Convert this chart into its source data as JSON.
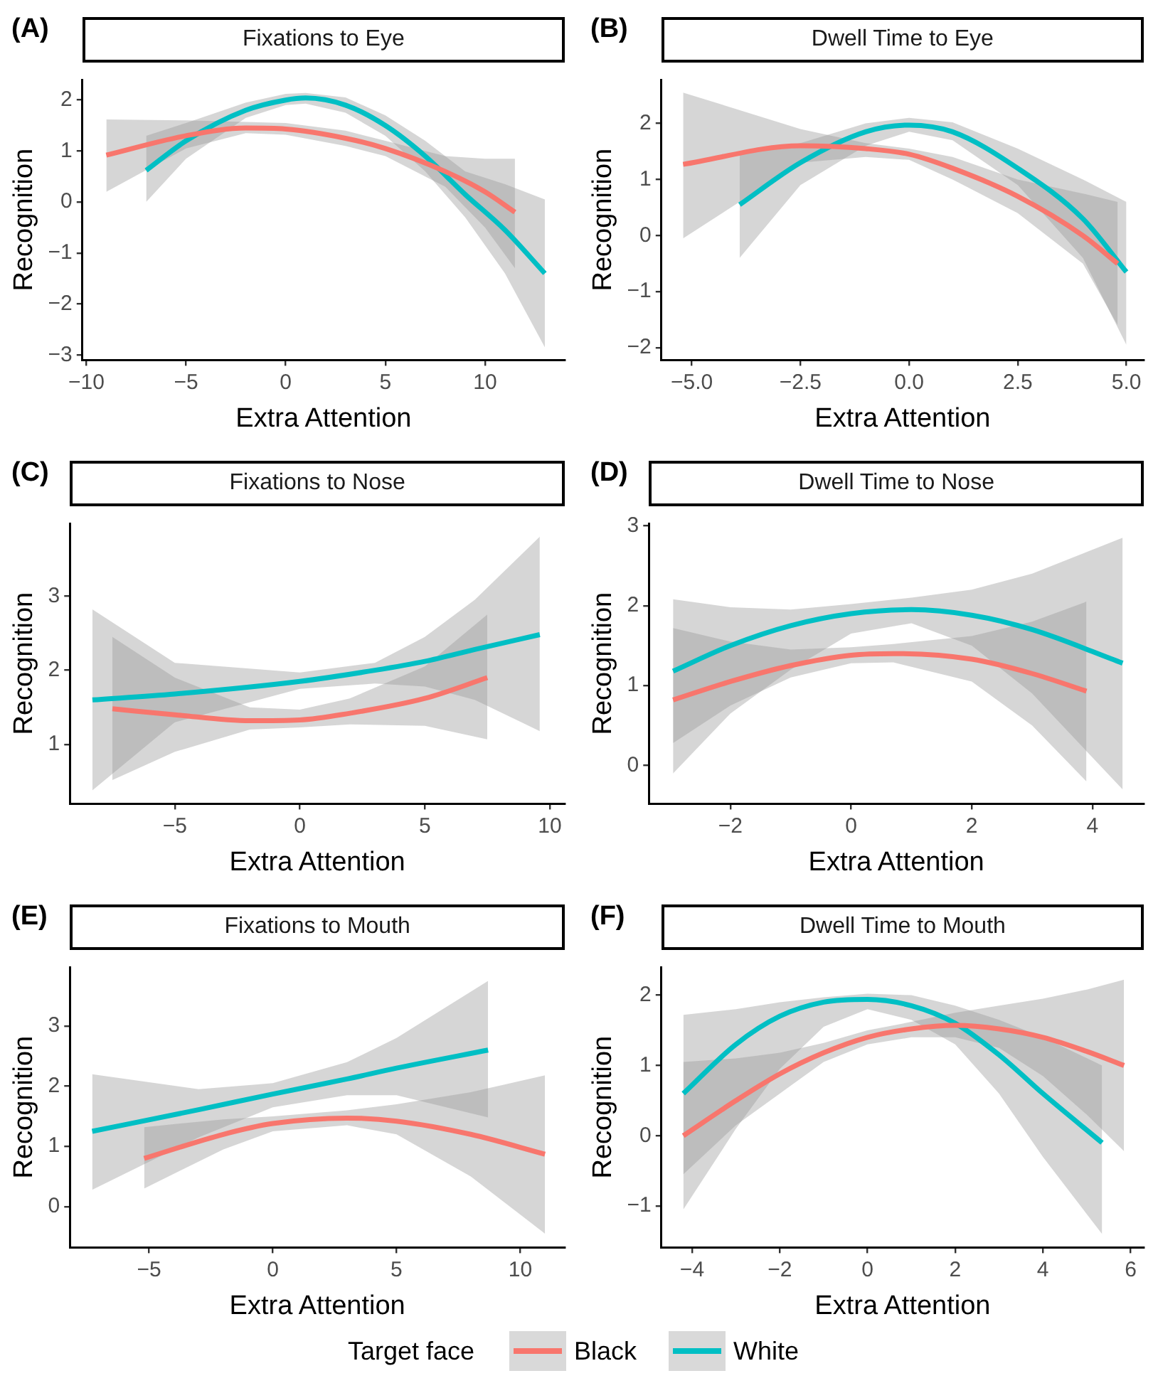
{
  "chart_data": [
    {
      "type": "line",
      "title": "Fixations to Eye",
      "annotations": [
        "(A)"
      ],
      "xlabel": "Extra Attention",
      "ylabel": "Recognition",
      "grid": false,
      "marker": "none",
      "line_style": "solid",
      "legend": "bottom",
      "legend_title": "Target face",
      "xlim": [
        -10.2,
        14
      ],
      "xticks": [
        {
          "value": -10,
          "label": "−10"
        },
        {
          "value": -5,
          "label": "−5"
        },
        0,
        5,
        10
      ],
      "ylim": [
        -3.1,
        2.4
      ],
      "yticks": [
        {
          "value": -3,
          "label": "−3"
        },
        {
          "value": -2,
          "label": "−2"
        },
        {
          "value": -1,
          "label": "−1"
        },
        0,
        1,
        2
      ],
      "series": [
        {
          "name": "Black",
          "color": "#f8766d",
          "x": [
            -9,
            -5,
            -2,
            0,
            3,
            5,
            8,
            10,
            11.5
          ],
          "values": [
            0.92,
            1.3,
            1.45,
            1.43,
            1.25,
            1.05,
            0.6,
            0.2,
            -0.2
          ],
          "lower": [
            0.2,
            1.05,
            1.35,
            1.32,
            1.1,
            0.9,
            0.3,
            -0.5,
            -1.3
          ],
          "upper": [
            1.62,
            1.6,
            1.57,
            1.55,
            1.4,
            1.2,
            0.9,
            0.85,
            0.85
          ]
        },
        {
          "name": "White",
          "color": "#00bfc4",
          "x": [
            -7,
            -5,
            -2,
            0,
            1,
            3,
            5,
            7,
            9,
            11,
            13
          ],
          "values": [
            0.62,
            1.2,
            1.8,
            2.0,
            2.04,
            1.9,
            1.5,
            0.9,
            0.15,
            -0.55,
            -1.4
          ],
          "lower": [
            0,
            0.85,
            1.65,
            1.9,
            1.93,
            1.75,
            1.3,
            0.6,
            -0.3,
            -1.4,
            -2.85
          ],
          "upper": [
            1.3,
            1.55,
            1.95,
            2.12,
            2.14,
            2.05,
            1.7,
            1.2,
            0.6,
            0.35,
            0.05
          ]
        }
      ]
    },
    {
      "type": "line",
      "title": "Dwell Time to Eye",
      "annotations": [
        "(B)"
      ],
      "xlabel": "Extra Attention",
      "ylabel": "Recognition",
      "grid": false,
      "marker": "none",
      "line_style": "solid",
      "xlim": [
        -5.7,
        5.4
      ],
      "xticks": [
        {
          "value": -5,
          "label": "−5.0"
        },
        {
          "value": -2.5,
          "label": "−2.5"
        },
        {
          "value": 0,
          "label": "0.0"
        },
        {
          "value": 2.5,
          "label": "2.5"
        },
        {
          "value": 5,
          "label": "5.0"
        }
      ],
      "ylim": [
        -2.22,
        2.78
      ],
      "yticks": [
        {
          "value": -2,
          "label": "−2"
        },
        {
          "value": -1,
          "label": "−1"
        },
        0,
        1,
        2
      ],
      "series": [
        {
          "color": "#f8766d",
          "x": [
            -5.2,
            -2.5,
            -1,
            0,
            1,
            2.5,
            4,
            4.8
          ],
          "values": [
            1.27,
            1.6,
            1.55,
            1.45,
            1.2,
            0.7,
            0.0,
            -0.5
          ],
          "lower": [
            -0.05,
            1.3,
            1.4,
            1.35,
            1.0,
            0.4,
            -0.5,
            -1.6
          ],
          "upper": [
            2.55,
            1.9,
            1.65,
            1.55,
            1.4,
            1.0,
            0.75,
            0.6
          ]
        },
        {
          "color": "#00bfc4",
          "x": [
            -3.9,
            -2.5,
            -1,
            0,
            1,
            2.5,
            4,
            5
          ],
          "values": [
            0.55,
            1.3,
            1.85,
            1.97,
            1.85,
            1.2,
            0.3,
            -0.65
          ],
          "lower": [
            -0.4,
            0.9,
            1.6,
            1.85,
            1.7,
            0.9,
            -0.4,
            -1.95
          ],
          "upper": [
            1.45,
            1.65,
            2.0,
            2.1,
            2.02,
            1.55,
            1.0,
            0.6
          ]
        }
      ]
    },
    {
      "type": "line",
      "title": "Fixations to Nose",
      "annotations": [
        "(C)"
      ],
      "xlabel": "Extra Attention",
      "ylabel": "Recognition",
      "grid": false,
      "marker": "none",
      "line_style": "solid",
      "xlim": [
        -9.2,
        10.6
      ],
      "xticks": [
        {
          "value": -5,
          "label": "−5"
        },
        0,
        5,
        10
      ],
      "ylim": [
        0.2,
        3.98
      ],
      "yticks": [
        1,
        2,
        3
      ],
      "series": [
        {
          "color": "#f8766d",
          "x": [
            -7.5,
            -5,
            -2,
            0,
            2,
            5,
            7.5
          ],
          "values": [
            1.48,
            1.4,
            1.32,
            1.33,
            1.42,
            1.62,
            1.9
          ],
          "lower": [
            0.52,
            0.9,
            1.2,
            1.23,
            1.27,
            1.25,
            1.07
          ],
          "upper": [
            2.45,
            1.9,
            1.5,
            1.47,
            1.62,
            2.05,
            2.75
          ]
        },
        {
          "color": "#00bfc4",
          "x": [
            -8.3,
            -5,
            0,
            3,
            5,
            7,
            9.6
          ],
          "values": [
            1.6,
            1.68,
            1.85,
            2.0,
            2.12,
            2.28,
            2.48
          ],
          "lower": [
            0.38,
            1.3,
            1.75,
            1.82,
            1.78,
            1.6,
            1.18
          ],
          "upper": [
            2.82,
            2.1,
            1.97,
            2.1,
            2.45,
            2.95,
            3.8
          ]
        }
      ]
    },
    {
      "type": "line",
      "title": "Dwell Time to Nose",
      "annotations": [
        "(D)"
      ],
      "xlabel": "Extra Attention",
      "ylabel": "Recognition",
      "grid": false,
      "marker": "none",
      "line_style": "solid",
      "xlim": [
        -3.35,
        4.85
      ],
      "xticks": [
        {
          "value": -2,
          "label": "−2"
        },
        0,
        2,
        4
      ],
      "ylim": [
        -0.48,
        3.03
      ],
      "yticks": [
        0,
        1,
        2,
        3
      ],
      "series": [
        {
          "color": "#f8766d",
          "x": [
            -2.95,
            -2,
            -1,
            0,
            0.7,
            2,
            3,
            3.9
          ],
          "values": [
            0.82,
            1.05,
            1.25,
            1.38,
            1.4,
            1.33,
            1.15,
            0.93
          ],
          "lower": [
            0.28,
            0.75,
            1.1,
            1.28,
            1.29,
            1.05,
            0.5,
            -0.2
          ],
          "upper": [
            1.72,
            1.55,
            1.45,
            1.48,
            1.52,
            1.62,
            1.8,
            2.05
          ]
        },
        {
          "color": "#00bfc4",
          "x": [
            -2.95,
            -2,
            -1,
            0,
            1,
            2,
            3,
            4.5
          ],
          "values": [
            1.18,
            1.5,
            1.75,
            1.9,
            1.95,
            1.88,
            1.7,
            1.28
          ],
          "lower": [
            -0.1,
            0.65,
            1.2,
            1.65,
            1.78,
            1.5,
            0.9,
            -0.3
          ],
          "upper": [
            2.08,
            1.98,
            1.95,
            2.02,
            2.1,
            2.2,
            2.4,
            2.85
          ]
        }
      ]
    },
    {
      "type": "line",
      "title": "Fixations to Mouth",
      "annotations": [
        "(E)"
      ],
      "xlabel": "Extra Attention",
      "ylabel": "Recognition",
      "grid": false,
      "marker": "none",
      "line_style": "solid",
      "xlim": [
        -8.2,
        11.8
      ],
      "xticks": [
        {
          "value": -5,
          "label": "−5"
        },
        0,
        5,
        10
      ],
      "ylim": [
        -0.68,
        3.98
      ],
      "yticks": [
        0,
        1,
        2,
        3
      ],
      "series": [
        {
          "color": "#f8766d",
          "x": [
            -5.2,
            -2,
            0,
            3,
            5,
            8,
            11
          ],
          "values": [
            0.8,
            1.2,
            1.38,
            1.47,
            1.42,
            1.2,
            0.87
          ],
          "lower": [
            0.3,
            0.95,
            1.25,
            1.35,
            1.2,
            0.5,
            -0.45
          ],
          "upper": [
            1.32,
            1.45,
            1.5,
            1.6,
            1.7,
            1.9,
            2.18
          ]
        },
        {
          "color": "#00bfc4",
          "x": [
            -7.3,
            -3,
            0,
            3,
            5,
            8.7
          ],
          "values": [
            1.25,
            1.61,
            1.87,
            2.12,
            2.3,
            2.6
          ],
          "lower": [
            0.28,
            1.15,
            1.65,
            1.85,
            1.85,
            1.48
          ],
          "upper": [
            2.2,
            1.95,
            2.05,
            2.4,
            2.8,
            3.75
          ]
        }
      ]
    },
    {
      "type": "line",
      "title": "Dwell Time to Mouth",
      "annotations": [
        "(F)"
      ],
      "xlabel": "Extra Attention",
      "ylabel": "Recognition",
      "grid": false,
      "marker": "none",
      "line_style": "solid",
      "xlim": [
        -4.7,
        6.3
      ],
      "xticks": [
        {
          "value": -4,
          "label": "−4"
        },
        {
          "value": -2,
          "label": "−2"
        },
        0,
        2,
        4,
        6
      ],
      "ylim": [
        -1.59,
        2.4
      ],
      "yticks": [
        {
          "value": -1,
          "label": "−1"
        },
        0,
        1,
        2
      ],
      "series": [
        {
          "color": "#f8766d",
          "x": [
            -4.2,
            -3,
            -2,
            -1,
            0,
            1,
            2,
            3,
            4,
            5,
            5.85
          ],
          "values": [
            0.0,
            0.5,
            0.88,
            1.18,
            1.4,
            1.52,
            1.57,
            1.52,
            1.4,
            1.2,
            1.0
          ],
          "lower": [
            -0.55,
            0.15,
            0.6,
            1.05,
            1.3,
            1.4,
            1.4,
            1.25,
            0.85,
            0.3,
            -0.22
          ],
          "upper": [
            1.05,
            1.1,
            1.18,
            1.32,
            1.5,
            1.62,
            1.75,
            1.85,
            1.95,
            2.08,
            2.22
          ]
        },
        {
          "color": "#00bfc4",
          "x": [
            -4.2,
            -3,
            -2,
            -1,
            0,
            1,
            2,
            3,
            4,
            5.35
          ],
          "values": [
            0.6,
            1.3,
            1.7,
            1.9,
            1.94,
            1.85,
            1.6,
            1.15,
            0.6,
            -0.1
          ],
          "lower": [
            -1.05,
            0.1,
            0.95,
            1.55,
            1.8,
            1.65,
            1.3,
            0.6,
            -0.3,
            -1.4
          ],
          "upper": [
            1.72,
            1.8,
            1.9,
            1.97,
            2.02,
            2.0,
            1.85,
            1.65,
            1.4,
            1.0
          ]
        }
      ]
    }
  ]
}
